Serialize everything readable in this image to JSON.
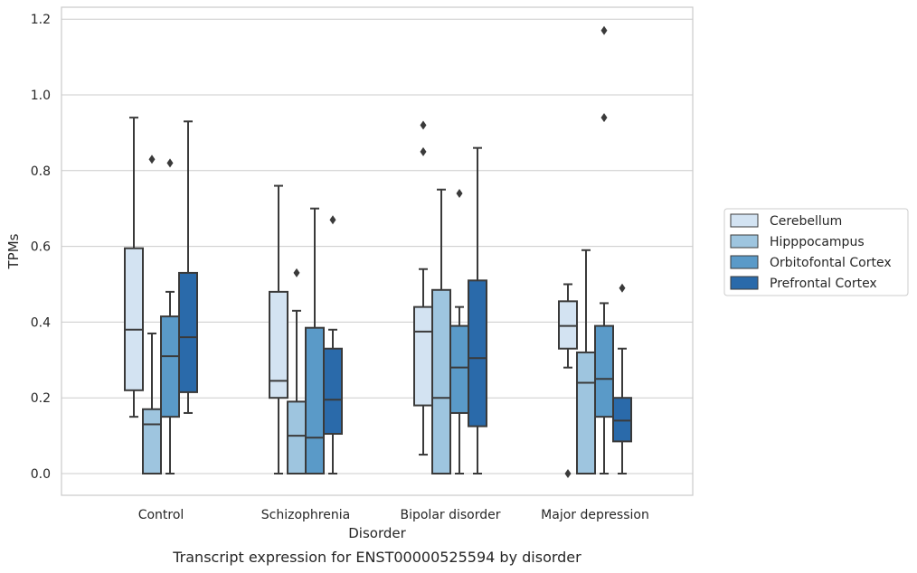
{
  "chart_data": {
    "type": "box",
    "title": "",
    "caption": "Transcript expression for ENST00000525594 by disorder",
    "xlabel": "Disorder",
    "ylabel": "TPMs",
    "ylim": [
      -0.057,
      1.23
    ],
    "yticks": [
      "0.0",
      "0.2",
      "0.4",
      "0.6",
      "0.8",
      "1.0",
      "1.2"
    ],
    "ytick_values": [
      0,
      0.2,
      0.4,
      0.6,
      0.8,
      1.0,
      1.2
    ],
    "grid": true,
    "legend_position": "right",
    "categories": [
      "Control",
      "Schizophrenia",
      "Bipolar disorder",
      "Major depression"
    ],
    "series": [
      {
        "name": "Cerebellum",
        "color": "#d3e3f2",
        "boxes": [
          {
            "whislo": 0.15,
            "q1": 0.22,
            "med": 0.38,
            "q3": 0.595,
            "whishi": 0.94,
            "fliers": []
          },
          {
            "whislo": 0.0,
            "q1": 0.2,
            "med": 0.245,
            "q3": 0.48,
            "whishi": 0.76,
            "fliers": []
          },
          {
            "whislo": 0.05,
            "q1": 0.18,
            "med": 0.375,
            "q3": 0.44,
            "whishi": 0.54,
            "fliers": [
              0.85,
              0.92
            ]
          },
          {
            "whislo": 0.28,
            "q1": 0.33,
            "med": 0.39,
            "q3": 0.455,
            "whishi": 0.5,
            "fliers": [
              0.0
            ]
          }
        ]
      },
      {
        "name": "Hipppocampus",
        "color": "#9ec5df",
        "boxes": [
          {
            "whislo": 0.0,
            "q1": 0.0,
            "med": 0.13,
            "q3": 0.17,
            "whishi": 0.37,
            "fliers": [
              0.83
            ]
          },
          {
            "whislo": 0.0,
            "q1": 0.0,
            "med": 0.1,
            "q3": 0.19,
            "whishi": 0.43,
            "fliers": [
              0.53
            ]
          },
          {
            "whislo": 0.0,
            "q1": 0.0,
            "med": 0.2,
            "q3": 0.485,
            "whishi": 0.75,
            "fliers": []
          },
          {
            "whislo": 0.0,
            "q1": 0.0,
            "med": 0.24,
            "q3": 0.32,
            "whishi": 0.59,
            "fliers": []
          }
        ]
      },
      {
        "name": "Orbitofontal Cortex",
        "color": "#5a9ac8",
        "boxes": [
          {
            "whislo": 0.0,
            "q1": 0.15,
            "med": 0.31,
            "q3": 0.415,
            "whishi": 0.48,
            "fliers": [
              0.82
            ]
          },
          {
            "whislo": 0.0,
            "q1": 0.0,
            "med": 0.095,
            "q3": 0.385,
            "whishi": 0.7,
            "fliers": []
          },
          {
            "whislo": 0.0,
            "q1": 0.16,
            "med": 0.28,
            "q3": 0.39,
            "whishi": 0.44,
            "fliers": [
              0.74
            ]
          },
          {
            "whislo": 0.0,
            "q1": 0.15,
            "med": 0.25,
            "q3": 0.39,
            "whishi": 0.45,
            "fliers": [
              0.94,
              1.17
            ]
          }
        ]
      },
      {
        "name": "Prefrontal Cortex",
        "color": "#2a6aaa",
        "boxes": [
          {
            "whislo": 0.16,
            "q1": 0.215,
            "med": 0.36,
            "q3": 0.53,
            "whishi": 0.93,
            "fliers": []
          },
          {
            "whislo": 0.0,
            "q1": 0.105,
            "med": 0.195,
            "q3": 0.33,
            "whishi": 0.38,
            "fliers": [
              0.67
            ]
          },
          {
            "whislo": 0.0,
            "q1": 0.125,
            "med": 0.305,
            "q3": 0.51,
            "whishi": 0.86,
            "fliers": []
          },
          {
            "whislo": 0.0,
            "q1": 0.085,
            "med": 0.14,
            "q3": 0.2,
            "whishi": 0.33,
            "fliers": [
              0.49
            ]
          }
        ]
      }
    ]
  }
}
